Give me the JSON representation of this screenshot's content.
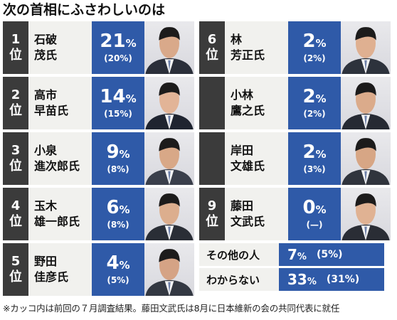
{
  "title": "次の首相にふさわしいのは",
  "left": [
    {
      "rank1": "1",
      "rank2": "位",
      "name1": "石破",
      "name2": "茂氏",
      "pct": "21",
      "unit": "%",
      "prev": "(20%)"
    },
    {
      "rank1": "2",
      "rank2": "位",
      "name1": "高市",
      "name2": "早苗氏",
      "pct": "14",
      "unit": "%",
      "prev": "(15%)"
    },
    {
      "rank1": "3",
      "rank2": "位",
      "name1": "小泉",
      "name2": "進次郎氏",
      "pct": "9",
      "unit": "%",
      "prev": "(8%)"
    },
    {
      "rank1": "4",
      "rank2": "位",
      "name1": "玉木",
      "name2": "雄一郎氏",
      "pct": "6",
      "unit": "%",
      "prev": "(8%)"
    },
    {
      "rank1": "5",
      "rank2": "位",
      "name1": "野田",
      "name2": "佳彦氏",
      "pct": "4",
      "unit": "%",
      "prev": "(5%)"
    }
  ],
  "right": [
    {
      "rank1": "6",
      "rank2": "位",
      "name1": "林",
      "name2": "芳正氏",
      "pct": "2",
      "unit": "%",
      "prev": "(2%)"
    },
    {
      "rank1": "",
      "rank2": "",
      "name1": "小林",
      "name2": "鷹之氏",
      "pct": "2",
      "unit": "%",
      "prev": "(2%)"
    },
    {
      "rank1": "",
      "rank2": "",
      "name1": "岸田",
      "name2": "文雄氏",
      "pct": "2",
      "unit": "%",
      "prev": "(3%)"
    },
    {
      "rank1": "9",
      "rank2": "位",
      "name1": "藤田",
      "name2": "文武氏",
      "pct": "0",
      "unit": "%",
      "prev": "(—)"
    }
  ],
  "others": [
    {
      "label": "その他の人",
      "pct": "7",
      "unit": "%",
      "prev": "(5%)"
    },
    {
      "label": "わからない",
      "pct": "33",
      "unit": "%",
      "prev": "(31%)"
    }
  ],
  "note": "※カッコ内は前回の７月調査結果。藤田文武氏は8月に日本維新の会の共同代表に就任",
  "colors": {
    "rank_bg": "#3b3b3b",
    "pct_bg": "#2f5aa8",
    "name_bg": "#f1f1ee"
  }
}
